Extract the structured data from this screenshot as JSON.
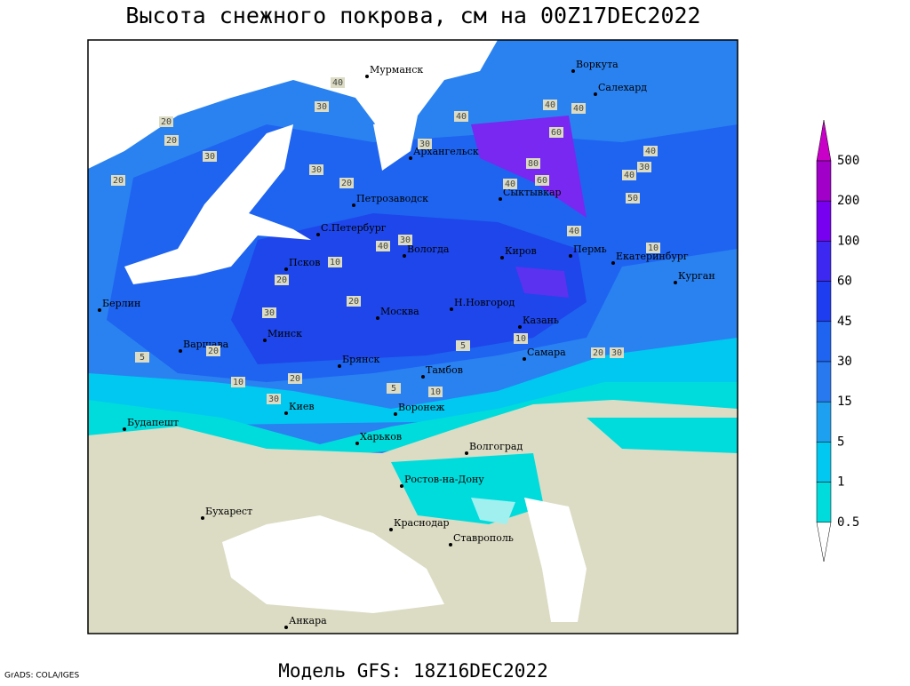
{
  "title": "Высота снежного покрова, см на 00Z17DEC2022",
  "footer": {
    "credit": "GrADS: COLA/IGES",
    "model": "Модель GFS: 18Z16DEC2022"
  },
  "colorbar": {
    "levels": [
      500,
      200,
      100,
      60,
      45,
      30,
      15,
      5,
      1,
      0.5
    ]
  },
  "cities": [
    "Мурманск",
    "Воркута",
    "Салехард",
    "Архангельск",
    "Сыктывкар",
    "Петрозаводск",
    "С.Петербург",
    "Вологда",
    "Киров",
    "Пермь",
    "Екатеринбург",
    "Курган",
    "Псков",
    "Берлин",
    "Н.Новгород",
    "Москва",
    "Казань",
    "Варшава",
    "Минск",
    "Самара",
    "Брянск",
    "Тамбов",
    "Воронеж",
    "Киев",
    "Будапешт",
    "Харьков",
    "Волгоград",
    "Ростов-на-Дону",
    "Бухарест",
    "Краснодар",
    "Ставрополь",
    "Анкара"
  ],
  "contour_labels": [
    "40",
    "30",
    "20",
    "30",
    "20",
    "30",
    "20",
    "40",
    "60",
    "80",
    "60",
    "40",
    "40",
    "40",
    "30",
    "40",
    "30",
    "40",
    "50",
    "40",
    "40",
    "30",
    "20",
    "10",
    "20",
    "30",
    "20",
    "10",
    "5",
    "10",
    "20",
    "30",
    "20",
    "5",
    "10",
    "5",
    "10",
    "20",
    "30"
  ]
}
